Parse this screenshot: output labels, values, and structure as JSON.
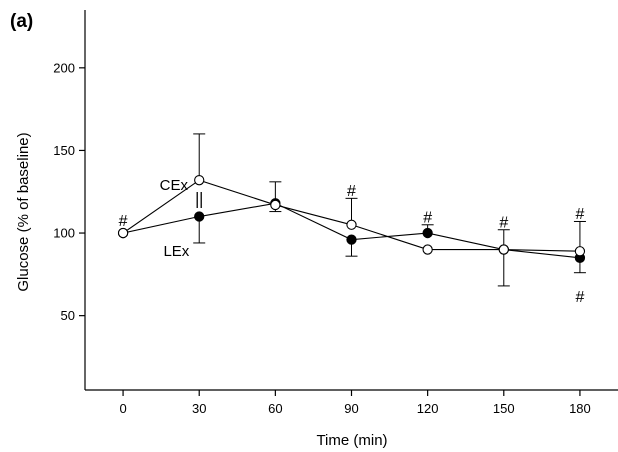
{
  "chart_data": {
    "type": "line",
    "panel_label": "(a)",
    "title": "",
    "xlabel": "Time (min)",
    "ylabel": "Glucose (% of baseline)",
    "x": [
      0,
      30,
      60,
      90,
      120,
      150,
      180
    ],
    "x_tick_labels": [
      "0",
      "30",
      "60",
      "90",
      "120",
      "150",
      "180"
    ],
    "xlim": [
      -15,
      195
    ],
    "y_ticks": [
      50,
      100,
      150,
      200
    ],
    "y_tick_labels": [
      "50",
      "100",
      "150",
      "200"
    ],
    "ylim": [
      5,
      235
    ],
    "grid": false,
    "series": [
      {
        "name": "CEx",
        "marker": "open-circle",
        "color": "#000000",
        "values": [
          100,
          132,
          117,
          105,
          90,
          90,
          89
        ],
        "error_up": [
          0,
          28,
          0,
          16,
          0,
          12,
          18
        ],
        "error_down": [
          0,
          0,
          0,
          0,
          0,
          0,
          0
        ]
      },
      {
        "name": "LEx",
        "marker": "filled-circle",
        "color": "#000000",
        "values": [
          100,
          110,
          118,
          96,
          100,
          90,
          85
        ],
        "error_up": [
          0,
          0,
          13,
          0,
          5,
          0,
          0
        ],
        "error_down": [
          0,
          16,
          5,
          10,
          0,
          22,
          9
        ]
      }
    ],
    "annotations": [
      {
        "text": "#",
        "x": 0,
        "y": 108,
        "series": "CEx"
      },
      {
        "text": "||",
        "x": 30,
        "y": 120,
        "series": "CEx"
      },
      {
        "text": "#",
        "x": 90,
        "y": 126,
        "series": "CEx"
      },
      {
        "text": "#",
        "x": 120,
        "y": 110,
        "series": "LEx"
      },
      {
        "text": "#",
        "x": 150,
        "y": 107,
        "series": "CEx"
      },
      {
        "text": "#",
        "x": 180,
        "y": 112,
        "series": "CEx"
      },
      {
        "text": "#",
        "x": 180,
        "y": 62,
        "series": "LEx"
      }
    ],
    "series_labels": [
      {
        "text": "CEx",
        "x": 20,
        "y": 129,
        "series": "CEx"
      },
      {
        "text": "LEx",
        "x": 21,
        "y": 89,
        "series": "LEx"
      }
    ]
  }
}
